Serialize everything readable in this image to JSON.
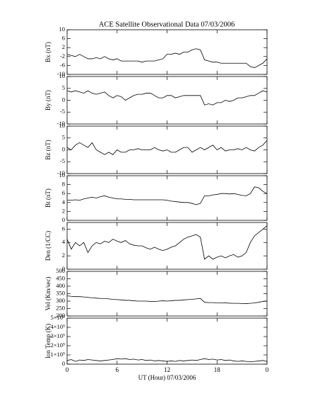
{
  "title": "ACE Satellite Observational Data   07/03/2006",
  "chart_data": [
    {
      "type": "line",
      "ylabel": "Bx (nT)",
      "color": "#000000",
      "x": [
        0,
        0.5,
        1,
        1.5,
        2,
        2.5,
        3,
        3.5,
        4,
        4.5,
        5,
        5.5,
        6,
        6.5,
        7,
        7.5,
        8,
        8.5,
        9,
        9.5,
        10,
        10.5,
        11,
        11.5,
        12,
        12.5,
        13,
        13.5,
        14,
        14.5,
        15,
        15.5,
        16,
        16.5,
        17,
        17.5,
        18,
        18.5,
        19,
        19.5,
        20,
        20.5,
        21,
        21.5,
        22,
        22.5,
        23,
        23.5,
        24
      ],
      "values": [
        -1,
        -1.5,
        -2,
        -1,
        -2,
        -3,
        -3,
        -2.5,
        -3,
        -2,
        -3,
        -3.5,
        -3,
        -4,
        -4,
        -4,
        -4,
        -4,
        -4.5,
        -4,
        -4,
        -4,
        -3.5,
        -3,
        -1,
        -1,
        -0.5,
        -1,
        0,
        0,
        1,
        1.5,
        1,
        -3.5,
        -4,
        -4.5,
        -4.5,
        -5,
        -5,
        -5,
        -5,
        -5,
        -5,
        -5,
        -6.5,
        -7,
        -6,
        -5,
        -3
      ],
      "xlim": [
        0,
        24
      ],
      "xticks": [
        0,
        6,
        12,
        18,
        {
          "value": 24,
          "label": "0"
        }
      ],
      "ylim": [
        -10,
        10
      ],
      "yticks": [
        -10,
        -6,
        -2,
        2,
        6,
        10
      ]
    },
    {
      "type": "line",
      "ylabel": "By (nT)",
      "color": "#000000",
      "x": [
        0,
        0.5,
        1,
        1.5,
        2,
        2.5,
        3,
        3.5,
        4,
        4.5,
        5,
        5.5,
        6,
        6.5,
        7,
        7.5,
        8,
        8.5,
        9,
        9.5,
        10,
        10.5,
        11,
        11.5,
        12,
        12.5,
        13,
        13.5,
        14,
        14.5,
        15,
        15.5,
        16,
        16.5,
        17,
        17.5,
        18,
        18.5,
        19,
        19.5,
        20,
        20.5,
        21,
        21.5,
        22,
        22.5,
        23,
        23.5,
        24
      ],
      "values": [
        4,
        3.5,
        4,
        3.5,
        3,
        4,
        3,
        2.5,
        3,
        3.5,
        2,
        1,
        2,
        1.5,
        0,
        1,
        2,
        2.5,
        2.5,
        3,
        3,
        2,
        1,
        1,
        2,
        2,
        1,
        1.5,
        2,
        2,
        2,
        2,
        2,
        -2,
        -1.5,
        -2,
        -1,
        -1,
        0,
        -0.5,
        0,
        1,
        1,
        1.5,
        2,
        2,
        3,
        4,
        3.5
      ],
      "xlim": [
        0,
        24
      ],
      "xticks": [
        0,
        6,
        12,
        18,
        {
          "value": 24,
          "label": "0"
        }
      ],
      "ylim": [
        -10,
        10
      ],
      "yticks": [
        -10,
        -5,
        0,
        5,
        10
      ]
    },
    {
      "type": "line",
      "ylabel": "Bz (nT)",
      "color": "#000000",
      "x": [
        0,
        0.5,
        1,
        1.5,
        2,
        2.5,
        3,
        3.5,
        4,
        4.5,
        5,
        5.5,
        6,
        6.5,
        7,
        7.5,
        8,
        8.5,
        9,
        9.5,
        10,
        10.5,
        11,
        11.5,
        12,
        12.5,
        13,
        13.5,
        14,
        14.5,
        15,
        15.5,
        16,
        16.5,
        17,
        17.5,
        18,
        18.5,
        19,
        19.5,
        20,
        20.5,
        21,
        21.5,
        22,
        22.5,
        23,
        23.5,
        24
      ],
      "values": [
        1,
        0,
        2,
        3,
        2,
        1,
        3,
        0,
        -1,
        -2,
        -1,
        -2,
        0,
        -1,
        -1,
        0,
        0,
        0.5,
        0,
        0,
        0,
        1,
        0,
        -0.5,
        0,
        -1,
        -1,
        0,
        1,
        1,
        -1,
        0,
        1,
        0,
        1,
        2,
        0,
        1,
        -0.5,
        0,
        0,
        0.5,
        0,
        1,
        0,
        -0.5,
        1,
        2,
        4
      ],
      "xlim": [
        0,
        24
      ],
      "xticks": [
        0,
        6,
        12,
        18,
        {
          "value": 24,
          "label": "0"
        }
      ],
      "ylim": [
        -10,
        10
      ],
      "yticks": [
        -10,
        -5,
        0,
        5,
        10
      ]
    },
    {
      "type": "line",
      "ylabel": "Bt (nT)",
      "color": "#000000",
      "x": [
        0,
        0.5,
        1,
        1.5,
        2,
        2.5,
        3,
        3.5,
        4,
        4.5,
        5,
        5.5,
        6,
        6.5,
        7,
        7.5,
        8,
        8.5,
        9,
        9.5,
        10,
        10.5,
        11,
        11.5,
        12,
        12.5,
        13,
        13.5,
        14,
        14.5,
        15,
        15.5,
        16,
        16.5,
        17,
        17.5,
        18,
        18.5,
        19,
        19.5,
        20,
        20.5,
        21,
        21.5,
        22,
        22.5,
        23,
        23.5,
        24
      ],
      "values": [
        4.5,
        4.5,
        4.6,
        4.5,
        4.8,
        5,
        5.2,
        5,
        5.3,
        5.5,
        5.2,
        5,
        4.8,
        4.8,
        4.7,
        4.7,
        4.6,
        4.6,
        4.6,
        4.6,
        4.6,
        4.6,
        4.6,
        4.6,
        4.5,
        4.3,
        4.2,
        4.1,
        4,
        4,
        3.8,
        3.5,
        3.8,
        5.5,
        5.5,
        5.7,
        5.8,
        6,
        6,
        5.9,
        6,
        5.8,
        5.6,
        5.5,
        6,
        7.5,
        7.3,
        6.5,
        6
      ],
      "xlim": [
        0,
        24
      ],
      "xticks": [
        0,
        6,
        12,
        18,
        {
          "value": 24,
          "label": "0"
        }
      ],
      "ylim": [
        0,
        10
      ],
      "yticks": [
        0,
        2,
        4,
        6,
        8,
        10
      ]
    },
    {
      "type": "line",
      "ylabel": "Den (1/CC)",
      "color": "#000000",
      "x": [
        0,
        0.5,
        1,
        1.5,
        2,
        2.5,
        3,
        3.5,
        4,
        4.5,
        5,
        5.5,
        6,
        6.5,
        7,
        7.5,
        8,
        8.5,
        9,
        9.5,
        10,
        10.5,
        11,
        11.5,
        12,
        12.5,
        13,
        13.5,
        14,
        14.5,
        15,
        15.5,
        16,
        16.5,
        17,
        17.5,
        18,
        18.5,
        19,
        19.5,
        20,
        20.5,
        21,
        21.5,
        22,
        22.5,
        23,
        23.5,
        24
      ],
      "values": [
        4.5,
        3,
        4,
        3.5,
        4,
        2.5,
        3.5,
        4,
        3.8,
        4.2,
        4,
        4.5,
        4.2,
        4,
        4.3,
        3.8,
        3.6,
        3.5,
        3.5,
        3.2,
        3,
        3.3,
        3,
        2.8,
        3,
        3.3,
        3.5,
        4,
        4.5,
        4.8,
        5,
        5.2,
        4.8,
        1.5,
        2,
        1.5,
        1.8,
        2,
        1.7,
        2,
        2.2,
        1.8,
        2,
        2.5,
        4,
        5,
        5.5,
        6,
        6.5
      ],
      "xlim": [
        0,
        24
      ],
      "xticks": [
        0,
        6,
        12,
        18,
        {
          "value": 24,
          "label": "0"
        }
      ],
      "ylim": [
        0,
        7
      ],
      "yticks": [
        0,
        2,
        4,
        6
      ]
    },
    {
      "type": "line",
      "ylabel": "Vel (Km/sec)",
      "color": "#000000",
      "x": [
        0,
        0.5,
        1,
        1.5,
        2,
        2.5,
        3,
        3.5,
        4,
        4.5,
        5,
        5.5,
        6,
        6.5,
        7,
        7.5,
        8,
        8.5,
        9,
        9.5,
        10,
        10.5,
        11,
        11.5,
        12,
        12.5,
        13,
        13.5,
        14,
        14.5,
        15,
        15.5,
        16,
        16.5,
        17,
        17.5,
        18,
        18.5,
        19,
        19.5,
        20,
        20.5,
        21,
        21.5,
        22,
        22.5,
        23,
        23.5,
        24
      ],
      "values": [
        335,
        332,
        330,
        330,
        328,
        325,
        322,
        320,
        318,
        318,
        315,
        312,
        310,
        308,
        305,
        305,
        302,
        300,
        300,
        300,
        298,
        297,
        300,
        302,
        300,
        302,
        305,
        305,
        308,
        310,
        312,
        315,
        318,
        292,
        290,
        290,
        288,
        287,
        288,
        286,
        285,
        285,
        284,
        283,
        285,
        288,
        292,
        298,
        300
      ],
      "xlim": [
        0,
        24
      ],
      "xticks": [
        0,
        6,
        12,
        18,
        {
          "value": 24,
          "label": "0"
        }
      ],
      "ylim": [
        200,
        500
      ],
      "yticks": [
        200,
        250,
        300,
        350,
        400,
        450,
        500
      ]
    },
    {
      "type": "line",
      "ylabel": "Ion Temp (K)",
      "xlabel": "UT (Hour)   07/03/2006",
      "color": "#000000",
      "x": [
        0,
        0.5,
        1,
        1.5,
        2,
        2.5,
        3,
        3.5,
        4,
        4.5,
        5,
        5.5,
        6,
        6.5,
        7,
        7.5,
        8,
        8.5,
        9,
        9.5,
        10,
        10.5,
        11,
        11.5,
        12,
        12.5,
        13,
        13.5,
        14,
        14.5,
        15,
        15.5,
        16,
        16.5,
        17,
        17.5,
        18,
        18.5,
        19,
        19.5,
        20,
        20.5,
        21,
        21.5,
        22,
        22.5,
        23,
        23.5,
        24
      ],
      "values": [
        40000,
        50000,
        30000,
        45000,
        40000,
        50000,
        45000,
        40000,
        35000,
        40000,
        45000,
        50000,
        60000,
        55000,
        60000,
        50000,
        55000,
        45000,
        50000,
        40000,
        45000,
        35000,
        40000,
        35000,
        30000,
        35000,
        30000,
        40000,
        35000,
        40000,
        45000,
        40000,
        50000,
        60000,
        50000,
        55000,
        45000,
        50000,
        40000,
        45000,
        35000,
        30000,
        35000,
        30000,
        25000,
        30000,
        35000,
        40000,
        30000
      ],
      "xlim": [
        0,
        24
      ],
      "xticks": [
        0,
        6,
        12,
        18,
        {
          "value": 24,
          "label": "0"
        }
      ],
      "ylim": [
        0,
        500000
      ],
      "yticks": [
        0,
        {
          "value": 100000,
          "label": "1×10⁵"
        },
        {
          "value": 200000,
          "label": "2×10⁵"
        },
        {
          "value": 300000,
          "label": "3×10⁵"
        },
        {
          "value": 400000,
          "label": "4×10⁵"
        },
        {
          "value": 500000,
          "label": "5×10⁵"
        }
      ]
    }
  ]
}
